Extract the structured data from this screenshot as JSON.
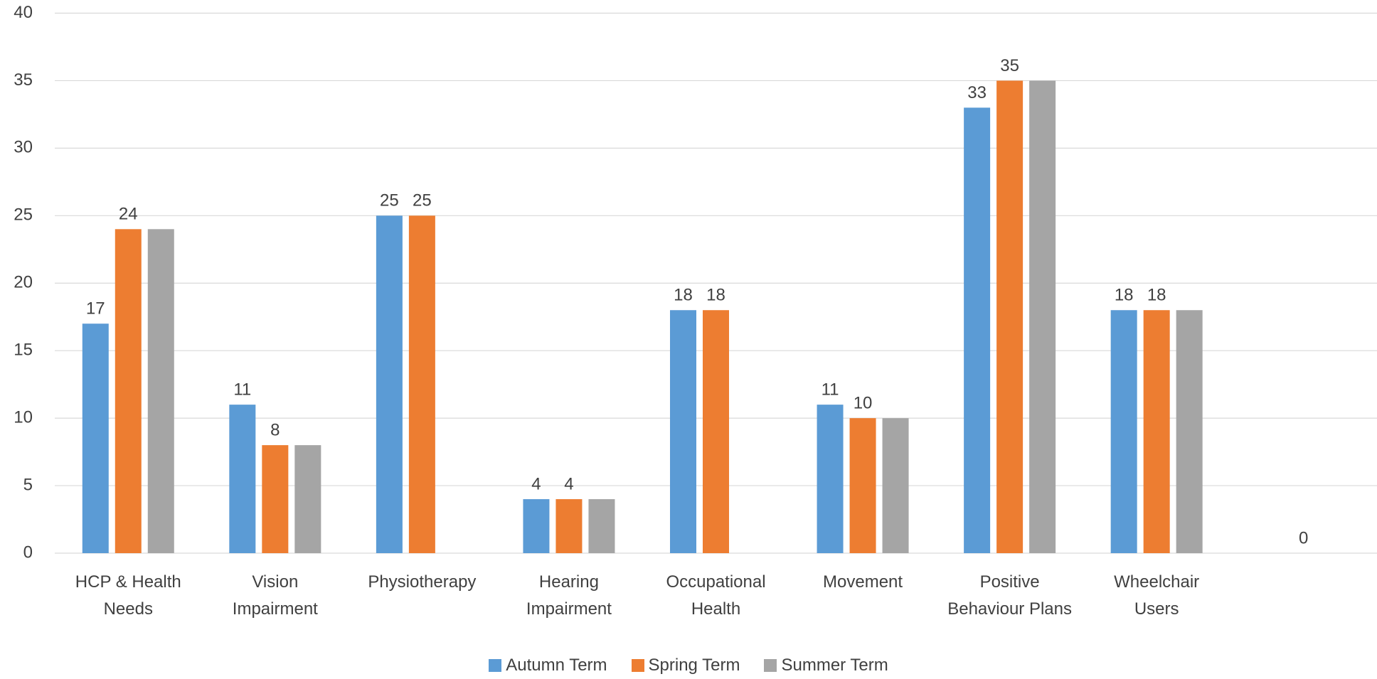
{
  "chart_data": {
    "type": "bar",
    "categories": [
      "HCP & Health Needs",
      "Vision Impairment",
      "Physiotherapy",
      "Hearing Impairment",
      "Occupational Health",
      "Movement",
      "Positive Behaviour Plans",
      "Wheelchair Users",
      null
    ],
    "series": [
      {
        "name": "Autumn Term",
        "color": "#5b9bd5",
        "show_labels": true,
        "values": [
          17,
          11,
          25,
          4,
          18,
          11,
          33,
          18,
          null
        ]
      },
      {
        "name": "Spring Term",
        "color": "#ed7d31",
        "show_labels": true,
        "values": [
          24,
          8,
          25,
          4,
          18,
          10,
          35,
          18,
          0
        ]
      },
      {
        "name": "Summer Term",
        "color": "#a5a5a5",
        "show_labels": false,
        "values": [
          24,
          8,
          null,
          4,
          null,
          10,
          35,
          18,
          null
        ]
      }
    ],
    "ylim": [
      0,
      40
    ],
    "yticks": [
      0,
      5,
      10,
      15,
      20,
      25,
      30,
      35,
      40
    ],
    "grid": true,
    "legend": "bottom"
  }
}
